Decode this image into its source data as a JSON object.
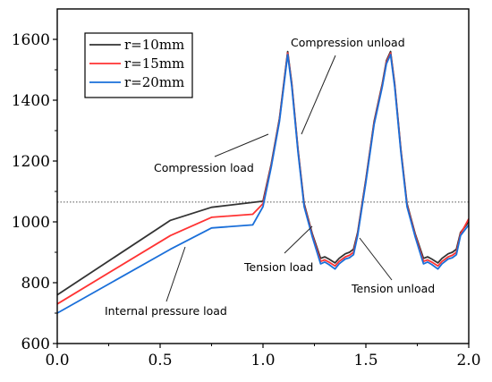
{
  "chart_data": {
    "type": "line",
    "title": "",
    "xlabel": "",
    "ylabel": "",
    "xlim": [
      0.0,
      2.0
    ],
    "ylim": [
      600,
      1700
    ],
    "xticks": [
      "0.0",
      "0.5",
      "1.0",
      "1.5",
      "2.0"
    ],
    "yticks": [
      "600",
      "800",
      "1000",
      "1200",
      "1400",
      "1600"
    ],
    "grid": false,
    "legend_position": "top-left",
    "reference_line": {
      "y": 1065,
      "style": "dotted"
    },
    "series": [
      {
        "name": "r=10mm",
        "color": "#333333",
        "x": [
          0.0,
          0.55,
          0.75,
          1.0,
          1.04,
          1.08,
          1.1,
          1.12,
          1.14,
          1.17,
          1.2,
          1.24,
          1.28,
          1.3,
          1.32,
          1.35,
          1.37,
          1.4,
          1.42,
          1.44,
          1.46,
          1.5,
          1.54,
          1.58,
          1.6,
          1.62,
          1.64,
          1.67,
          1.7,
          1.74,
          1.78,
          1.8,
          1.82,
          1.85,
          1.87,
          1.9,
          1.92,
          1.94,
          1.96,
          2.0
        ],
        "y": [
          760,
          1005,
          1048,
          1068,
          1190,
          1340,
          1450,
          1560,
          1455,
          1240,
          1060,
          960,
          880,
          885,
          878,
          865,
          880,
          895,
          900,
          910,
          965,
          1140,
          1330,
          1455,
          1530,
          1560,
          1455,
          1240,
          1060,
          960,
          880,
          885,
          878,
          865,
          880,
          895,
          900,
          910,
          965,
          1000
        ]
      },
      {
        "name": "r=15mm",
        "color": "#ff3333",
        "x": [
          0.0,
          0.55,
          0.75,
          0.95,
          1.0,
          1.04,
          1.08,
          1.1,
          1.12,
          1.14,
          1.17,
          1.2,
          1.24,
          1.28,
          1.3,
          1.32,
          1.35,
          1.37,
          1.4,
          1.42,
          1.44,
          1.46,
          1.5,
          1.54,
          1.58,
          1.6,
          1.62,
          1.64,
          1.67,
          1.7,
          1.74,
          1.78,
          1.8,
          1.82,
          1.85,
          1.87,
          1.9,
          1.92,
          1.94,
          1.96,
          2.0
        ],
        "y": [
          730,
          955,
          1015,
          1025,
          1060,
          1185,
          1335,
          1445,
          1555,
          1450,
          1235,
          1055,
          955,
          870,
          875,
          868,
          855,
          870,
          885,
          890,
          900,
          960,
          1135,
          1325,
          1450,
          1525,
          1555,
          1450,
          1235,
          1055,
          955,
          870,
          875,
          868,
          855,
          870,
          885,
          890,
          900,
          960,
          1010
        ]
      },
      {
        "name": "r=20mm",
        "color": "#1a6fd9",
        "x": [
          0.0,
          0.55,
          0.75,
          0.95,
          1.0,
          1.04,
          1.08,
          1.1,
          1.12,
          1.14,
          1.17,
          1.2,
          1.24,
          1.28,
          1.3,
          1.32,
          1.35,
          1.37,
          1.4,
          1.42,
          1.44,
          1.46,
          1.5,
          1.54,
          1.58,
          1.6,
          1.62,
          1.64,
          1.67,
          1.7,
          1.74,
          1.78,
          1.8,
          1.82,
          1.85,
          1.87,
          1.9,
          1.92,
          1.94,
          1.96,
          2.0
        ],
        "y": [
          700,
          910,
          980,
          990,
          1050,
          1180,
          1330,
          1440,
          1550,
          1445,
          1230,
          1050,
          950,
          862,
          868,
          860,
          845,
          862,
          878,
          882,
          892,
          955,
          1130,
          1320,
          1445,
          1520,
          1550,
          1445,
          1230,
          1050,
          950,
          862,
          868,
          860,
          845,
          862,
          878,
          882,
          892,
          955,
          990
        ]
      }
    ],
    "annotations": [
      {
        "text": "Compression unload",
        "ax": 1.2,
        "ay": 1268
      },
      {
        "text": "Compression load",
        "ax": 1.02,
        "ay": 1250
      },
      {
        "text": "Tension load",
        "ax": 1.25,
        "ay": 988
      },
      {
        "text": "Tension unload",
        "ax": 1.44,
        "ay": 930
      },
      {
        "text": "Internal pressure load",
        "ax": 0.74,
        "ay": 908
      }
    ]
  }
}
